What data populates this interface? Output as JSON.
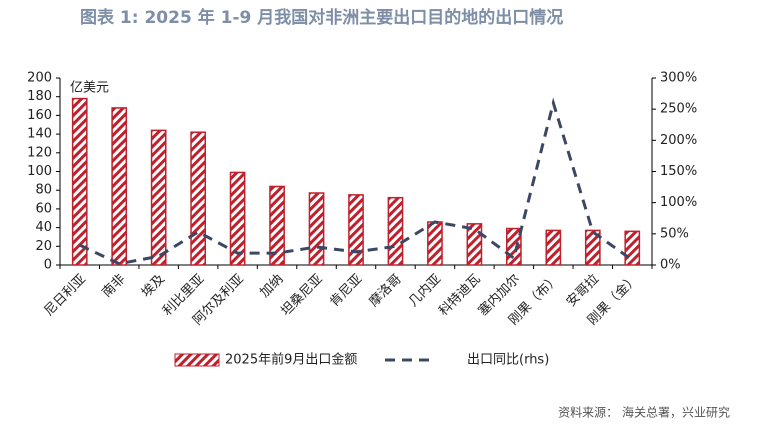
{
  "chart_data": {
    "type": "bar_line",
    "title": "图表 1: 2025 年 1-9 月我国对非洲主要出口目的地的出口情况",
    "unit_label": "亿美元",
    "source": "资料来源： 海关总署，兴业研究",
    "categories": [
      "尼日利亚",
      "南非",
      "埃及",
      "利比里亚",
      "阿尔及利亚",
      "加纳",
      "坦桑尼亚",
      "肯尼亚",
      "摩洛哥",
      "几内亚",
      "科特迪瓦",
      "塞内加尔",
      "刚果（布）",
      "安哥拉",
      "刚果（金）"
    ],
    "series": [
      {
        "name": "2025年前9月出口金额",
        "type": "bar",
        "color": "#c0202c",
        "values": [
          178,
          168,
          144,
          142,
          99,
          84,
          77,
          75,
          72,
          46,
          44,
          39,
          37,
          37,
          36
        ]
      },
      {
        "name": "出口同比(rhs)",
        "type": "line",
        "axis": "y2",
        "color": "#3b4763",
        "values": [
          32,
          2,
          14,
          53,
          19,
          19,
          29,
          21,
          30,
          69,
          58,
          11,
          260,
          53,
          8
        ]
      }
    ],
    "ylim": [
      0,
      200
    ],
    "yticks": [
      0,
      20,
      40,
      60,
      80,
      100,
      120,
      140,
      160,
      180,
      200
    ],
    "y2lim": [
      0,
      300
    ],
    "y2ticks": [
      {
        "value": 0,
        "label": "0%"
      },
      {
        "value": 50,
        "label": "50%"
      },
      {
        "value": 100,
        "label": "100%"
      },
      {
        "value": 150,
        "label": "150%"
      },
      {
        "value": 200,
        "label": "200%"
      },
      {
        "value": 250,
        "label": "250%"
      },
      {
        "value": 300,
        "label": "300%"
      }
    ]
  }
}
